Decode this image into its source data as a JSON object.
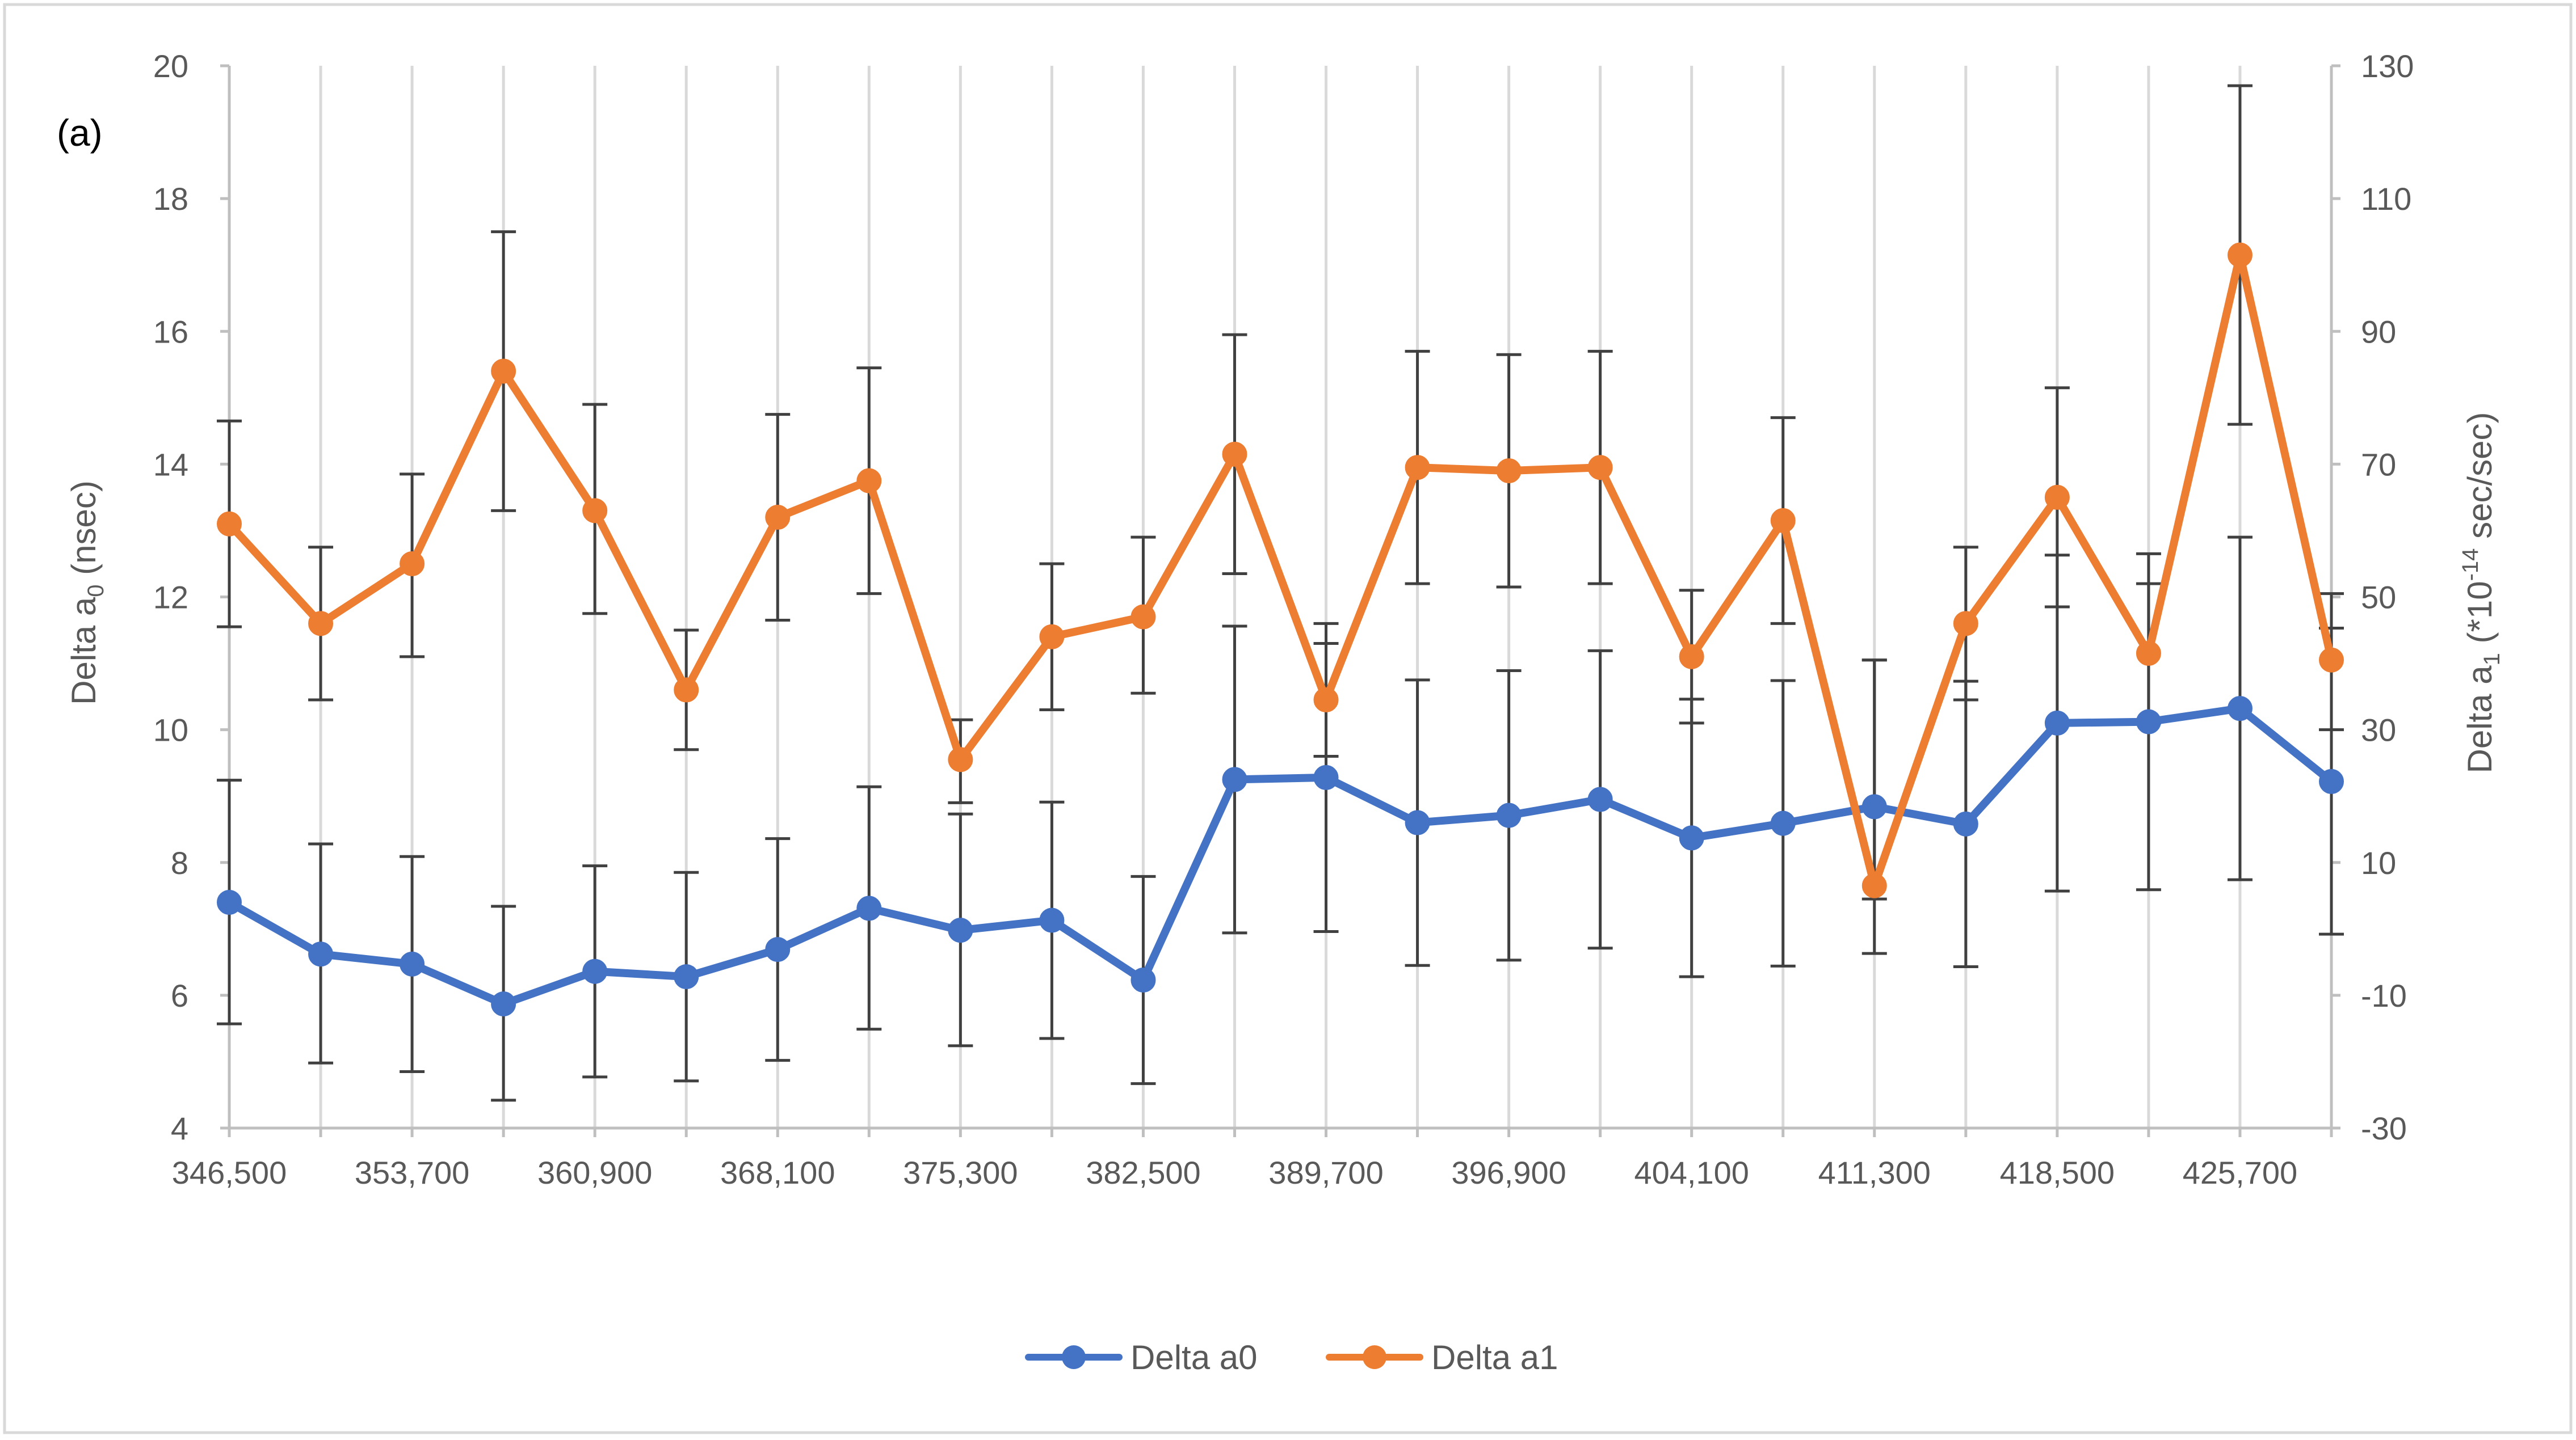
{
  "chart_data": {
    "type": "line",
    "panel_label": "(a)",
    "x_ticks": [
      "346,500",
      "353,700",
      "360,900",
      "368,100",
      "375,300",
      "382,500",
      "389,700",
      "396,900",
      "404,100",
      "411,300",
      "418,500",
      "425,700"
    ],
    "x": [
      346500,
      350100,
      353700,
      357300,
      360900,
      364500,
      368100,
      371700,
      375300,
      378900,
      382500,
      386100,
      389700,
      393300,
      396900,
      400500,
      404100,
      407700,
      411300,
      414900,
      418500,
      422100,
      425700,
      429300
    ],
    "xlim": [
      346500,
      429300
    ],
    "y_left": {
      "label_base": "Delta a",
      "label_sub": "0",
      "label_suffix": " (nsec)",
      "ylim": [
        4,
        20
      ],
      "ticks": [
        "4",
        "6",
        "8",
        "10",
        "12",
        "14",
        "16",
        "18",
        "20"
      ]
    },
    "y_right": {
      "label_base": "Delta a",
      "label_sub": "1",
      "label_mid": " (*10",
      "label_sup": "-14",
      "label_suffix": " sec/sec)",
      "ylim": [
        -30,
        130
      ],
      "ticks": [
        "-30",
        "-10",
        "10",
        "30",
        "50",
        "70",
        "90",
        "110",
        "130"
      ]
    },
    "series": [
      {
        "name": "Delta a0",
        "axis": "left",
        "color": "#4472C4",
        "values": [
          7.4,
          6.62,
          6.47,
          5.87,
          6.36,
          6.28,
          6.69,
          7.31,
          6.98,
          7.13,
          6.23,
          9.25,
          9.28,
          8.6,
          8.71,
          8.95,
          8.37,
          8.59,
          8.84,
          8.58,
          10.1,
          10.12,
          10.32,
          9.22
        ],
        "err_low": [
          5.57,
          4.98,
          4.85,
          4.42,
          4.77,
          4.71,
          5.02,
          5.49,
          5.24,
          5.35,
          4.67,
          6.94,
          6.96,
          6.45,
          6.53,
          6.71,
          6.28,
          6.44,
          6.63,
          6.43,
          7.57,
          7.59,
          7.74,
          6.92
        ],
        "err_high": [
          9.24,
          8.28,
          8.09,
          7.34,
          7.95,
          7.85,
          8.36,
          9.14,
          8.73,
          8.91,
          7.79,
          11.56,
          11.6,
          10.75,
          10.89,
          11.19,
          10.46,
          10.74,
          11.05,
          10.73,
          12.63,
          12.65,
          12.9,
          11.53
        ]
      },
      {
        "name": "Delta a1",
        "axis": "right",
        "color": "#ED7D31",
        "values": [
          61,
          46,
          55,
          84,
          63,
          36,
          62,
          67.5,
          25.5,
          44,
          47,
          71.5,
          34.5,
          69.5,
          69,
          69.5,
          41,
          61.5,
          6.5,
          46,
          65,
          41.5,
          101.5,
          40.5
        ],
        "err_low": [
          45.5,
          34.5,
          41,
          63,
          47.5,
          27,
          46.5,
          50.5,
          19,
          33,
          35.5,
          53.5,
          26,
          52,
          51.5,
          52,
          31,
          46,
          4.5,
          34.5,
          48.5,
          31,
          76,
          30
        ],
        "err_high": [
          76.5,
          57.5,
          68.5,
          105,
          79,
          45,
          77.5,
          84.5,
          31.5,
          55,
          59,
          89.5,
          43,
          87,
          86.5,
          87,
          51,
          77,
          40.5,
          57.5,
          81.5,
          52,
          127,
          50.5
        ]
      }
    ],
    "legend_position": "bottom",
    "grid": "vertical"
  }
}
